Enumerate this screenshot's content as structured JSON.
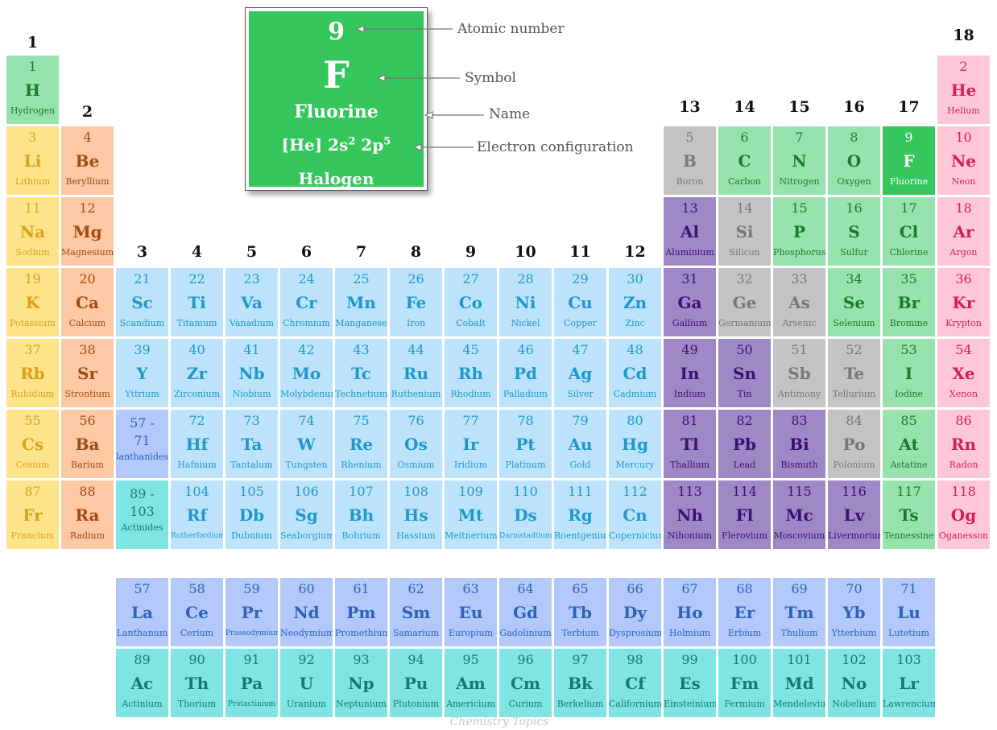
{
  "group_labels": [
    "1",
    "2",
    "3",
    "4",
    "5",
    "6",
    "7",
    "8",
    "9",
    "10",
    "11",
    "12",
    "13",
    "14",
    "15",
    "16",
    "17",
    "18"
  ],
  "legend": {
    "number": "9",
    "symbol": "F",
    "name": "Fluorine",
    "config_core": "[He] 2s",
    "config_sup1": "2",
    "config_mid": " 2p",
    "config_sup2": "5",
    "category": "Halogen",
    "labels": {
      "atomic_number": "Atomic number",
      "symbol": "Symbol",
      "name": "Name",
      "electron_configuration": "Electron configuration"
    }
  },
  "placeholders": {
    "lanthanides": {
      "range": "57 -\n71",
      "name": "lanthanides"
    },
    "actinides": {
      "range": "89 -\n103",
      "name": "Actinides"
    }
  },
  "watermark": "Chemistry Topics",
  "colors": {
    "alkali": "#fde38a",
    "alkaline": "#fdc9a4",
    "transition": "#bce3fb",
    "post_transition": "#9e88c6",
    "metalloid": "#c4c4c4",
    "nonmetal": "#98e3ad",
    "noble": "#fdc7d9",
    "lanthanide": "#b3c8fb",
    "actinide": "#7fe5e4",
    "halogen_highlight": "#35c65e"
  },
  "elements": [
    {
      "n": "1",
      "s": "H",
      "name": "Hydrogen",
      "cat": "hydrogen",
      "row": 1,
      "col": 1
    },
    {
      "n": "2",
      "s": "He",
      "name": "Helium",
      "cat": "noble",
      "row": 1,
      "col": 18
    },
    {
      "n": "3",
      "s": "Li",
      "name": "Lithium",
      "cat": "alkali",
      "row": 2,
      "col": 1
    },
    {
      "n": "4",
      "s": "Be",
      "name": "Beryllium",
      "cat": "alkaline",
      "row": 2,
      "col": 2
    },
    {
      "n": "5",
      "s": "B",
      "name": "Boron",
      "cat": "metalloid",
      "row": 2,
      "col": 13
    },
    {
      "n": "6",
      "s": "C",
      "name": "Carbon",
      "cat": "nonmetal",
      "row": 2,
      "col": 14
    },
    {
      "n": "7",
      "s": "N",
      "name": "Nitrogen",
      "cat": "nonmetal",
      "row": 2,
      "col": 15
    },
    {
      "n": "8",
      "s": "O",
      "name": "Oxygen",
      "cat": "nonmetal",
      "row": 2,
      "col": 16
    },
    {
      "n": "9",
      "s": "F",
      "name": "Fluorine",
      "cat": "halogen",
      "row": 2,
      "col": 17
    },
    {
      "n": "10",
      "s": "Ne",
      "name": "Neon",
      "cat": "noble",
      "row": 2,
      "col": 18
    },
    {
      "n": "11",
      "s": "Na",
      "name": "Sodium",
      "cat": "alkali",
      "row": 3,
      "col": 1
    },
    {
      "n": "12",
      "s": "Mg",
      "name": "Magnesium",
      "cat": "alkaline",
      "row": 3,
      "col": 2
    },
    {
      "n": "13",
      "s": "Al",
      "name": "Aluminium",
      "cat": "post",
      "row": 3,
      "col": 13
    },
    {
      "n": "14",
      "s": "Si",
      "name": "Silicon",
      "cat": "metalloid",
      "row": 3,
      "col": 14
    },
    {
      "n": "15",
      "s": "P",
      "name": "Phosphorus",
      "cat": "nonmetal",
      "row": 3,
      "col": 15
    },
    {
      "n": "16",
      "s": "S",
      "name": "Sulfur",
      "cat": "nonmetal",
      "row": 3,
      "col": 16
    },
    {
      "n": "17",
      "s": "Cl",
      "name": "Chlorine",
      "cat": "nonmetal",
      "row": 3,
      "col": 17
    },
    {
      "n": "18",
      "s": "Ar",
      "name": "Argon",
      "cat": "noble",
      "row": 3,
      "col": 18
    },
    {
      "n": "19",
      "s": "K",
      "name": "Potassium",
      "cat": "alkali",
      "row": 4,
      "col": 1
    },
    {
      "n": "20",
      "s": "Ca",
      "name": "Calcium",
      "cat": "alkaline",
      "row": 4,
      "col": 2
    },
    {
      "n": "21",
      "s": "Sc",
      "name": "Scandium",
      "cat": "transition",
      "row": 4,
      "col": 3
    },
    {
      "n": "22",
      "s": "Ti",
      "name": "Titanium",
      "cat": "transition",
      "row": 4,
      "col": 4
    },
    {
      "n": "23",
      "s": "Va",
      "name": "Vanadium",
      "cat": "transition",
      "row": 4,
      "col": 5
    },
    {
      "n": "24",
      "s": "Cr",
      "name": "Chromium",
      "cat": "transition",
      "row": 4,
      "col": 6
    },
    {
      "n": "25",
      "s": "Mn",
      "name": "Manganese",
      "cat": "transition",
      "row": 4,
      "col": 7
    },
    {
      "n": "26",
      "s": "Fe",
      "name": "Iron",
      "cat": "transition",
      "row": 4,
      "col": 8
    },
    {
      "n": "27",
      "s": "Co",
      "name": "Cobalt",
      "cat": "transition",
      "row": 4,
      "col": 9
    },
    {
      "n": "28",
      "s": "Ni",
      "name": "Nickel",
      "cat": "transition",
      "row": 4,
      "col": 10
    },
    {
      "n": "29",
      "s": "Cu",
      "name": "Copper",
      "cat": "transition",
      "row": 4,
      "col": 11
    },
    {
      "n": "30",
      "s": "Zn",
      "name": "Zinc",
      "cat": "transition",
      "row": 4,
      "col": 12
    },
    {
      "n": "31",
      "s": "Ga",
      "name": "Gallium",
      "cat": "post",
      "row": 4,
      "col": 13
    },
    {
      "n": "32",
      "s": "Ge",
      "name": "Germanium",
      "cat": "metalloid",
      "row": 4,
      "col": 14
    },
    {
      "n": "33",
      "s": "As",
      "name": "Arsenic",
      "cat": "metalloid",
      "row": 4,
      "col": 15
    },
    {
      "n": "34",
      "s": "Se",
      "name": "Selenium",
      "cat": "nonmetal",
      "row": 4,
      "col": 16
    },
    {
      "n": "35",
      "s": "Br",
      "name": "Bromine",
      "cat": "nonmetal",
      "row": 4,
      "col": 17
    },
    {
      "n": "36",
      "s": "Kr",
      "name": "Krypton",
      "cat": "noble",
      "row": 4,
      "col": 18
    },
    {
      "n": "37",
      "s": "Rb",
      "name": "Rubidium",
      "cat": "alkali",
      "row": 5,
      "col": 1
    },
    {
      "n": "38",
      "s": "Sr",
      "name": "Strontium",
      "cat": "alkaline",
      "row": 5,
      "col": 2
    },
    {
      "n": "39",
      "s": "Y",
      "name": "Yttrium",
      "cat": "transition",
      "row": 5,
      "col": 3
    },
    {
      "n": "40",
      "s": "Zr",
      "name": "Zirconium",
      "cat": "transition",
      "row": 5,
      "col": 4
    },
    {
      "n": "41",
      "s": "Nb",
      "name": "Niobium",
      "cat": "transition",
      "row": 5,
      "col": 5
    },
    {
      "n": "42",
      "s": "Mo",
      "name": "Molybdenum",
      "cat": "transition",
      "row": 5,
      "col": 6
    },
    {
      "n": "43",
      "s": "Tc",
      "name": "Technetium",
      "cat": "transition",
      "row": 5,
      "col": 7
    },
    {
      "n": "44",
      "s": "Ru",
      "name": "Ruthenium",
      "cat": "transition",
      "row": 5,
      "col": 8
    },
    {
      "n": "45",
      "s": "Rh",
      "name": "Rhodium",
      "cat": "transition",
      "row": 5,
      "col": 9
    },
    {
      "n": "46",
      "s": "Pd",
      "name": "Palladium",
      "cat": "transition",
      "row": 5,
      "col": 10
    },
    {
      "n": "47",
      "s": "Ag",
      "name": "Silver",
      "cat": "transition",
      "row": 5,
      "col": 11
    },
    {
      "n": "48",
      "s": "Cd",
      "name": "Cadmium",
      "cat": "transition",
      "row": 5,
      "col": 12
    },
    {
      "n": "49",
      "s": "In",
      "name": "Indium",
      "cat": "post",
      "row": 5,
      "col": 13
    },
    {
      "n": "50",
      "s": "Sn",
      "name": "Tin",
      "cat": "post",
      "row": 5,
      "col": 14
    },
    {
      "n": "51",
      "s": "Sb",
      "name": "Antimony",
      "cat": "metalloid",
      "row": 5,
      "col": 15
    },
    {
      "n": "52",
      "s": "Te",
      "name": "Tellurium",
      "cat": "metalloid",
      "row": 5,
      "col": 16
    },
    {
      "n": "53",
      "s": "I",
      "name": "Iodine",
      "cat": "nonmetal",
      "row": 5,
      "col": 17
    },
    {
      "n": "54",
      "s": "Xe",
      "name": "Xenon",
      "cat": "noble",
      "row": 5,
      "col": 18
    },
    {
      "n": "55",
      "s": "Cs",
      "name": "Cesium",
      "cat": "alkali",
      "row": 6,
      "col": 1
    },
    {
      "n": "56",
      "s": "Ba",
      "name": "Barium",
      "cat": "alkaline",
      "row": 6,
      "col": 2
    },
    {
      "n": "72",
      "s": "Hf",
      "name": "Hafnium",
      "cat": "transition",
      "row": 6,
      "col": 4
    },
    {
      "n": "73",
      "s": "Ta",
      "name": "Tantalum",
      "cat": "transition",
      "row": 6,
      "col": 5
    },
    {
      "n": "74",
      "s": "W",
      "name": "Tungsten",
      "cat": "transition",
      "row": 6,
      "col": 6
    },
    {
      "n": "75",
      "s": "Re",
      "name": "Rhenium",
      "cat": "transition",
      "row": 6,
      "col": 7
    },
    {
      "n": "76",
      "s": "Os",
      "name": "Osmium",
      "cat": "transition",
      "row": 6,
      "col": 8
    },
    {
      "n": "77",
      "s": "Ir",
      "name": "Iridium",
      "cat": "transition",
      "row": 6,
      "col": 9
    },
    {
      "n": "78",
      "s": "Pt",
      "name": "Platinum",
      "cat": "transition",
      "row": 6,
      "col": 10
    },
    {
      "n": "79",
      "s": "Au",
      "name": "Gold",
      "cat": "transition",
      "row": 6,
      "col": 11
    },
    {
      "n": "80",
      "s": "Hg",
      "name": "Mercury",
      "cat": "transition",
      "row": 6,
      "col": 12
    },
    {
      "n": "81",
      "s": "Tl",
      "name": "Thallium",
      "cat": "post",
      "row": 6,
      "col": 13
    },
    {
      "n": "82",
      "s": "Pb",
      "name": "Lead",
      "cat": "post",
      "row": 6,
      "col": 14
    },
    {
      "n": "83",
      "s": "Bi",
      "name": "Bismuth",
      "cat": "post",
      "row": 6,
      "col": 15
    },
    {
      "n": "84",
      "s": "Po",
      "name": "Polonium",
      "cat": "metalloid",
      "row": 6,
      "col": 16
    },
    {
      "n": "85",
      "s": "At",
      "name": "Astatine",
      "cat": "nonmetal",
      "row": 6,
      "col": 17
    },
    {
      "n": "86",
      "s": "Rn",
      "name": "Radon",
      "cat": "noble",
      "row": 6,
      "col": 18
    },
    {
      "n": "87",
      "s": "Fr",
      "name": "Francium",
      "cat": "alkali",
      "row": 7,
      "col": 1
    },
    {
      "n": "88",
      "s": "Ra",
      "name": "Radium",
      "cat": "alkaline",
      "row": 7,
      "col": 2
    },
    {
      "n": "104",
      "s": "Rf",
      "name": "Rutherfordium",
      "cat": "transition",
      "row": 7,
      "col": 4
    },
    {
      "n": "105",
      "s": "Db",
      "name": "Dubnium",
      "cat": "transition",
      "row": 7,
      "col": 5
    },
    {
      "n": "106",
      "s": "Sg",
      "name": "Seaborgium",
      "cat": "transition",
      "row": 7,
      "col": 6
    },
    {
      "n": "107",
      "s": "Bh",
      "name": "Bohrium",
      "cat": "transition",
      "row": 7,
      "col": 7
    },
    {
      "n": "108",
      "s": "Hs",
      "name": "Hassium",
      "cat": "transition",
      "row": 7,
      "col": 8
    },
    {
      "n": "109",
      "s": "Mt",
      "name": "Meitnerium",
      "cat": "transition",
      "row": 7,
      "col": 9
    },
    {
      "n": "110",
      "s": "Ds",
      "name": "Darmstadtium",
      "cat": "transition",
      "row": 7,
      "col": 10
    },
    {
      "n": "111",
      "s": "Rg",
      "name": "Roentgenium",
      "cat": "transition",
      "row": 7,
      "col": 11
    },
    {
      "n": "112",
      "s": "Cn",
      "name": "Copernicium",
      "cat": "transition",
      "row": 7,
      "col": 12
    },
    {
      "n": "113",
      "s": "Nh",
      "name": "Nihonium",
      "cat": "post",
      "row": 7,
      "col": 13
    },
    {
      "n": "114",
      "s": "Fl",
      "name": "Flerovium",
      "cat": "post",
      "row": 7,
      "col": 14
    },
    {
      "n": "115",
      "s": "Mc",
      "name": "Moscovium",
      "cat": "post",
      "row": 7,
      "col": 15
    },
    {
      "n": "116",
      "s": "Lv",
      "name": "Livermorium",
      "cat": "post",
      "row": 7,
      "col": 16
    },
    {
      "n": "117",
      "s": "Ts",
      "name": "Tennessine",
      "cat": "nonmetal",
      "row": 7,
      "col": 17
    },
    {
      "n": "118",
      "s": "Og",
      "name": "Oganesson",
      "cat": "noble",
      "row": 7,
      "col": 18
    },
    {
      "n": "57",
      "s": "La",
      "name": "Lanthanum",
      "cat": "lanth",
      "row": 8,
      "col": 3
    },
    {
      "n": "58",
      "s": "Ce",
      "name": "Cerium",
      "cat": "lanth",
      "row": 8,
      "col": 4
    },
    {
      "n": "59",
      "s": "Pr",
      "name": "Praseodymium",
      "cat": "lanth",
      "row": 8,
      "col": 5
    },
    {
      "n": "60",
      "s": "Nd",
      "name": "Neodymium",
      "cat": "lanth",
      "row": 8,
      "col": 6
    },
    {
      "n": "61",
      "s": "Pm",
      "name": "Promethium",
      "cat": "lanth",
      "row": 8,
      "col": 7
    },
    {
      "n": "62",
      "s": "Sm",
      "name": "Samarium",
      "cat": "lanth",
      "row": 8,
      "col": 8
    },
    {
      "n": "63",
      "s": "Eu",
      "name": "Europium",
      "cat": "lanth",
      "row": 8,
      "col": 9
    },
    {
      "n": "64",
      "s": "Gd",
      "name": "Gadolinium",
      "cat": "lanth",
      "row": 8,
      "col": 10
    },
    {
      "n": "65",
      "s": "Tb",
      "name": "Terbium",
      "cat": "lanth",
      "row": 8,
      "col": 11
    },
    {
      "n": "66",
      "s": "Dy",
      "name": "Dysprosium",
      "cat": "lanth",
      "row": 8,
      "col": 12
    },
    {
      "n": "67",
      "s": "Ho",
      "name": "Holmium",
      "cat": "lanth",
      "row": 8,
      "col": 13
    },
    {
      "n": "68",
      "s": "Er",
      "name": "Erbium",
      "cat": "lanth",
      "row": 8,
      "col": 14
    },
    {
      "n": "69",
      "s": "Tm",
      "name": "Thulium",
      "cat": "lanth",
      "row": 8,
      "col": 15
    },
    {
      "n": "70",
      "s": "Yb",
      "name": "Ytterbium",
      "cat": "lanth",
      "row": 8,
      "col": 16
    },
    {
      "n": "71",
      "s": "Lu",
      "name": "Lutetium",
      "cat": "lanth",
      "row": 8,
      "col": 17
    },
    {
      "n": "89",
      "s": "Ac",
      "name": "Actinium",
      "cat": "actin",
      "row": 9,
      "col": 3
    },
    {
      "n": "90",
      "s": "Th",
      "name": "Thorium",
      "cat": "actin",
      "row": 9,
      "col": 4
    },
    {
      "n": "91",
      "s": "Pa",
      "name": "Protactinium",
      "cat": "actin",
      "row": 9,
      "col": 5
    },
    {
      "n": "92",
      "s": "U",
      "name": "Uranium",
      "cat": "actin",
      "row": 9,
      "col": 6
    },
    {
      "n": "93",
      "s": "Np",
      "name": "Neptunium",
      "cat": "actin",
      "row": 9,
      "col": 7
    },
    {
      "n": "94",
      "s": "Pu",
      "name": "Plutonium",
      "cat": "actin",
      "row": 9,
      "col": 8
    },
    {
      "n": "95",
      "s": "Am",
      "name": "Americium",
      "cat": "actin",
      "row": 9,
      "col": 9
    },
    {
      "n": "96",
      "s": "Cm",
      "name": "Curium",
      "cat": "actin",
      "row": 9,
      "col": 10
    },
    {
      "n": "97",
      "s": "Bk",
      "name": "Berkelium",
      "cat": "actin",
      "row": 9,
      "col": 11
    },
    {
      "n": "98",
      "s": "Cf",
      "name": "Californium",
      "cat": "actin",
      "row": 9,
      "col": 12
    },
    {
      "n": "99",
      "s": "Es",
      "name": "Einsteinium",
      "cat": "actin",
      "row": 9,
      "col": 13
    },
    {
      "n": "100",
      "s": "Fm",
      "name": "Fermium",
      "cat": "actin",
      "row": 9,
      "col": 14
    },
    {
      "n": "101",
      "s": "Md",
      "name": "Mendelevium",
      "cat": "actin",
      "row": 9,
      "col": 15
    },
    {
      "n": "102",
      "s": "No",
      "name": "Nobelium",
      "cat": "actin",
      "row": 9,
      "col": 16
    },
    {
      "n": "103",
      "s": "Lr",
      "name": "Lawrencium",
      "cat": "actin",
      "row": 9,
      "col": 17
    }
  ]
}
